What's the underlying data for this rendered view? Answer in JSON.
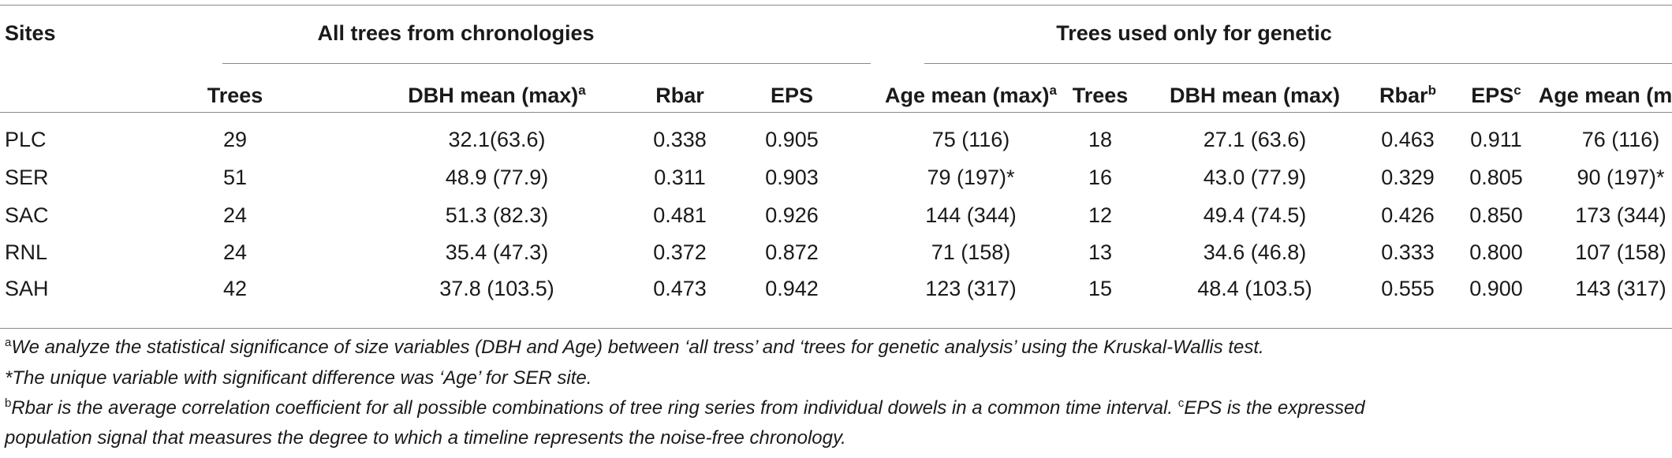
{
  "header": {
    "sites": "Sites",
    "group_all": "All trees from chronologies",
    "group_genetic": "Trees used only for genetic",
    "columns": [
      {
        "label": "Trees",
        "sup": ""
      },
      {
        "label": "DBH mean (max)",
        "sup": "a"
      },
      {
        "label": "Rbar",
        "sup": ""
      },
      {
        "label": "EPS",
        "sup": ""
      },
      {
        "label": "Age mean (max)",
        "sup": "a"
      },
      {
        "label": "Trees",
        "sup": ""
      },
      {
        "label": "DBH mean (max)",
        "sup": ""
      },
      {
        "label": "Rbar",
        "sup": "b"
      },
      {
        "label": "EPS",
        "sup": "c"
      },
      {
        "label": "Age mean (max)",
        "sup": ""
      }
    ]
  },
  "rows": [
    [
      "PLC",
      "29",
      "32.1(63.6)",
      "0.338",
      "0.905",
      "75 (116)",
      "18",
      "27.1 (63.6)",
      "0.463",
      "0.911",
      "76 (116)"
    ],
    [
      "SER",
      "51",
      "48.9 (77.9)",
      "0.311",
      "0.903",
      "79 (197)*",
      "16",
      "43.0 (77.9)",
      "0.329",
      "0.805",
      "90 (197)*"
    ],
    [
      "SAC",
      "24",
      "51.3 (82.3)",
      "0.481",
      "0.926",
      "144 (344)",
      "12",
      "49.4 (74.5)",
      "0.426",
      "0.850",
      "173 (344)"
    ],
    [
      "RNL",
      "24",
      "35.4 (47.3)",
      "0.372",
      "0.872",
      "71 (158)",
      "13",
      "34.6 (46.8)",
      "0.333",
      "0.800",
      "107 (158)"
    ],
    [
      "SAH",
      "42",
      "37.8 (103.5)",
      "0.473",
      "0.942",
      "123 (317)",
      "15",
      "48.4 (103.5)",
      "0.555",
      "0.900",
      "143 (317)"
    ]
  ],
  "footnotes": {
    "a_mark": "a",
    "a_text": "We analyze the statistical significance of size variables (DBH and Age) between ‘all tress’ and ‘trees for genetic analysis’ using the Kruskal-Wallis test.",
    "star_text": "*The unique variable with significant difference was ‘Age’ for SER site.",
    "b_mark": "b",
    "b_text": "Rbar is the average correlation coefficient for all possible combinations of tree ring series from individual dowels in a common time interval.",
    "c_mark": "c",
    "c_text_1": "EPS is the expressed",
    "c_text_2": "population signal that measures the degree to which a timeline represents the noise-free chronology."
  }
}
